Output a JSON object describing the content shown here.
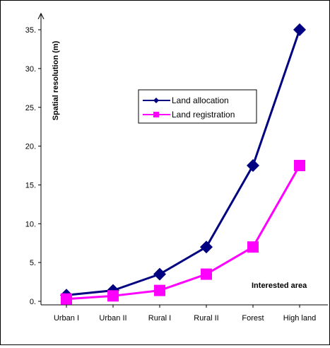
{
  "chart_data": {
    "type": "line",
    "categories": [
      "Urban I",
      "Urban II",
      "Rural I",
      "Rural II",
      "Forest",
      "High land"
    ],
    "series": [
      {
        "name": "Land allocation",
        "values": [
          0.8,
          1.4,
          3.5,
          7.0,
          17.5,
          35.0
        ],
        "color": "#000080",
        "marker": "diamond"
      },
      {
        "name": "Land registration",
        "values": [
          0.3,
          0.7,
          1.4,
          3.5,
          7.0,
          17.5
        ],
        "color": "#ff00ff",
        "marker": "square"
      }
    ],
    "ylabel": "Spatial resolution (m)",
    "xlabel": "Interested area",
    "ylim": [
      0,
      37.5
    ],
    "yticks": [
      "0.",
      "5.",
      "10.",
      "15.",
      "20.",
      "25.",
      "30.",
      "35."
    ],
    "grid": false,
    "legend_position": "top-center"
  }
}
